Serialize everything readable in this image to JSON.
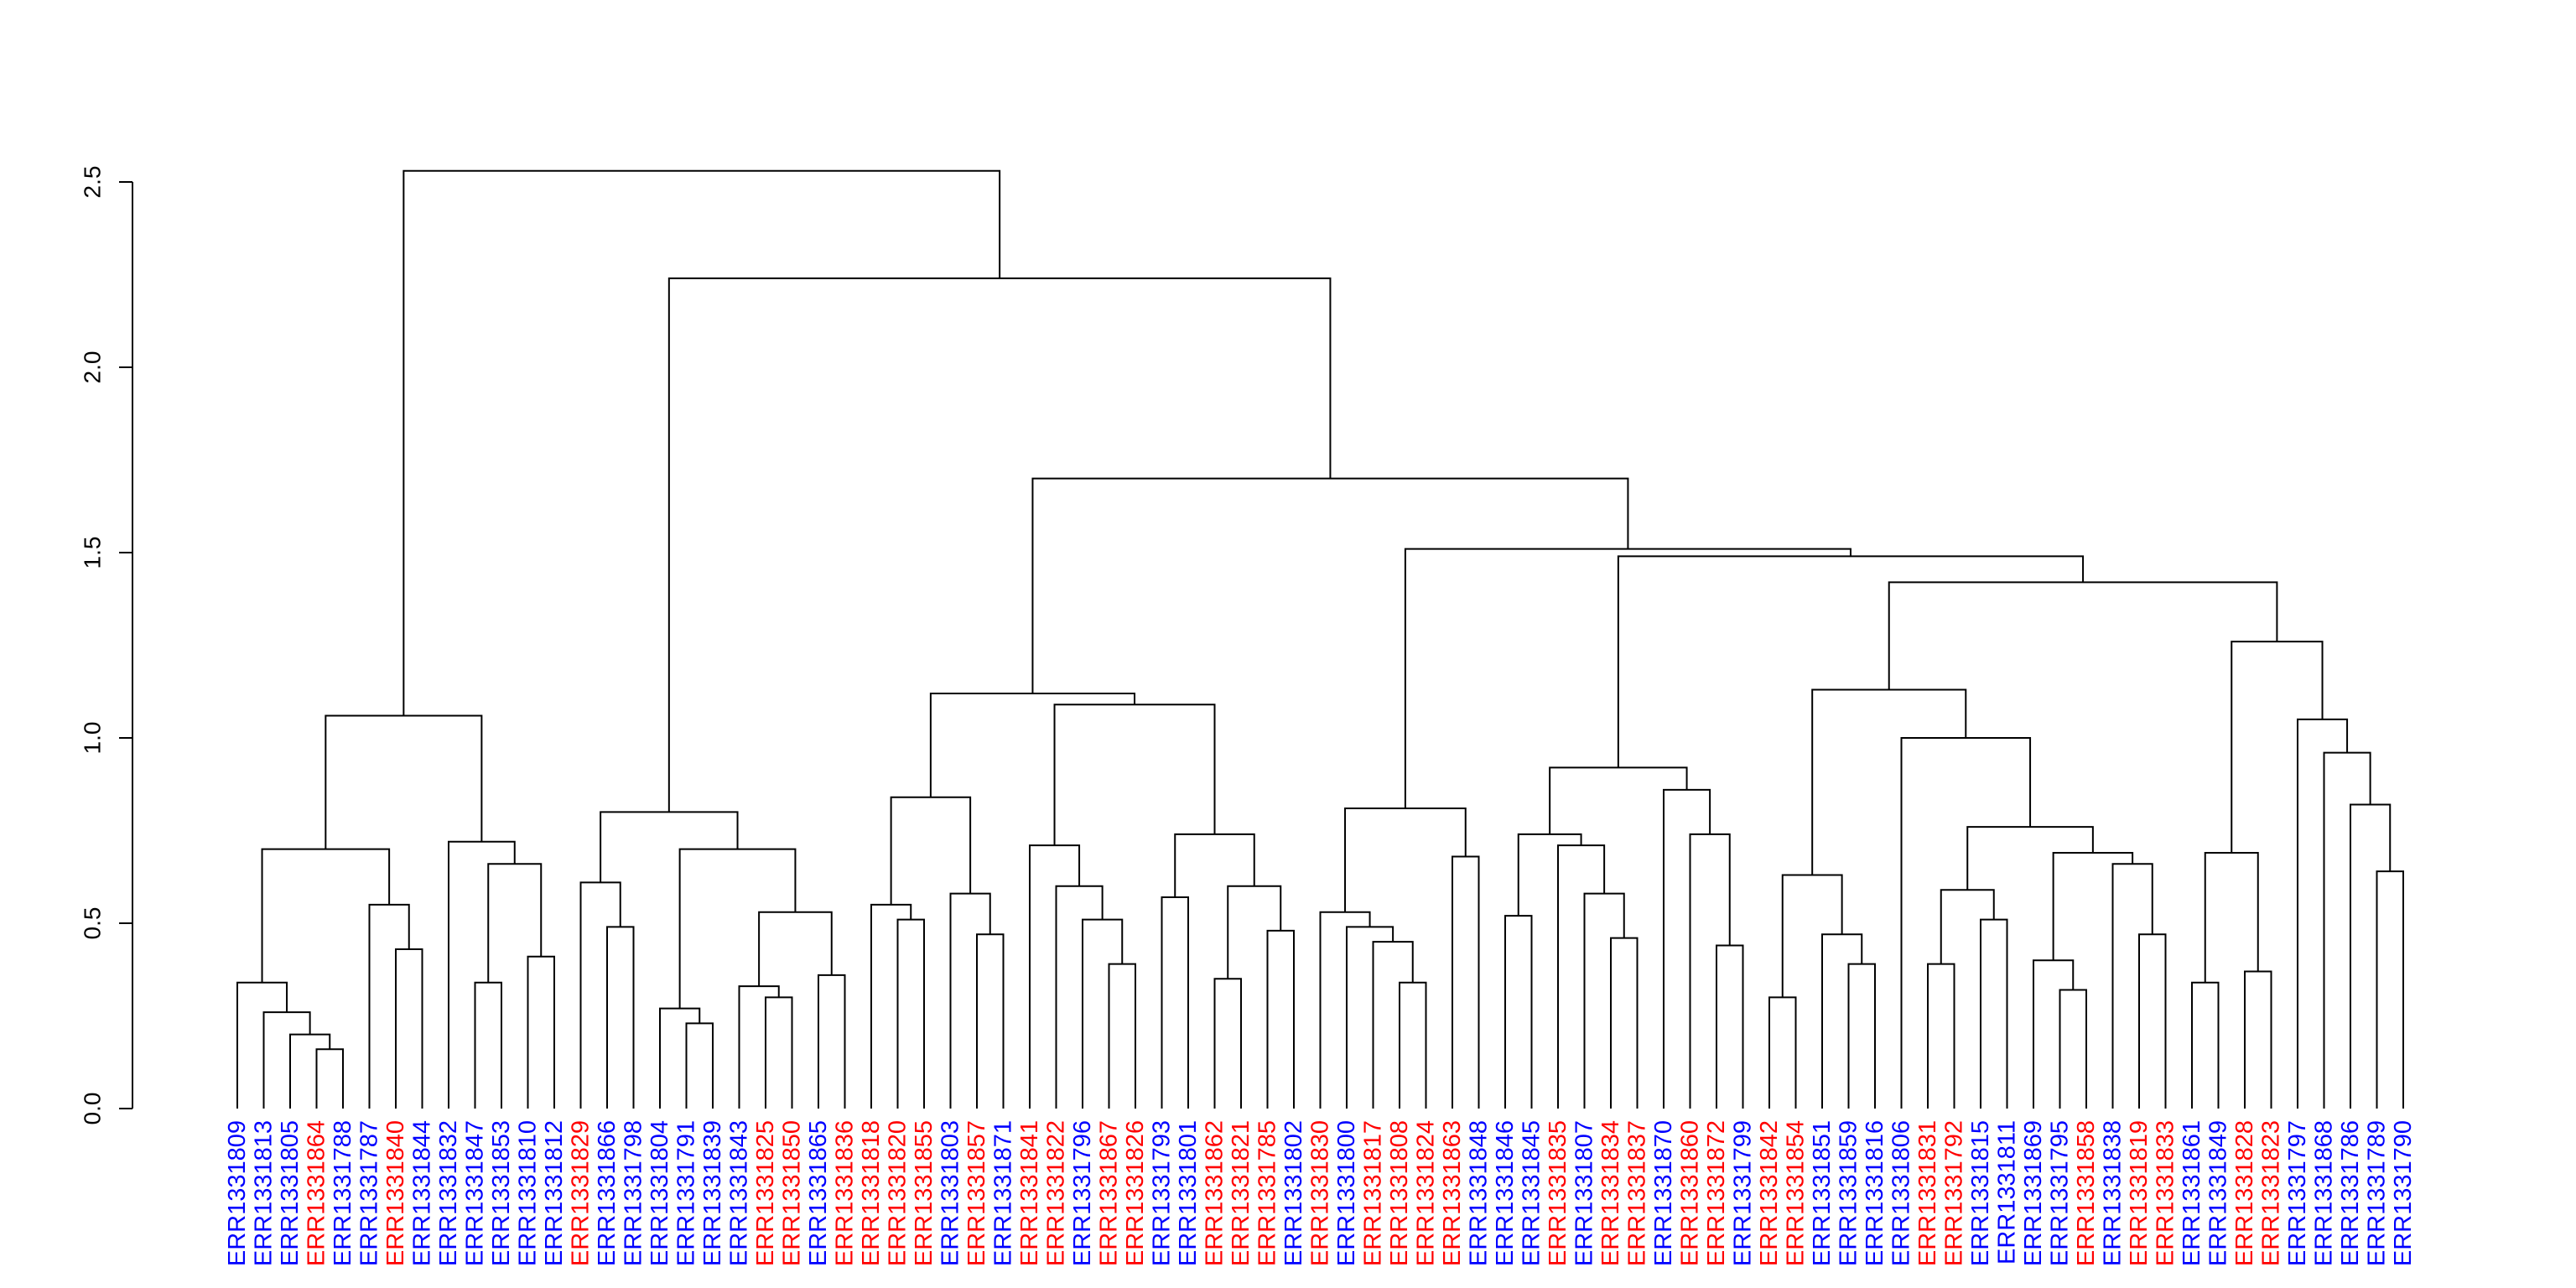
{
  "chart_data": {
    "type": "dendrogram",
    "title": "",
    "xlabel": "",
    "ylabel": "",
    "ylim": [
      0,
      2.5
    ],
    "y_ticks": [
      "0.0",
      "0.5",
      "1.0",
      "1.5",
      "2.0",
      "2.5"
    ],
    "grid": false,
    "group_colors": {
      "red": "#ff0000",
      "blue": "#0000ff"
    },
    "leaves": [
      {
        "label": "ERR1331809",
        "group": "blue"
      },
      {
        "label": "ERR1331813",
        "group": "blue"
      },
      {
        "label": "ERR1331805",
        "group": "blue"
      },
      {
        "label": "ERR1331864",
        "group": "red"
      },
      {
        "label": "ERR1331788",
        "group": "blue"
      },
      {
        "label": "ERR1331787",
        "group": "blue"
      },
      {
        "label": "ERR1331840",
        "group": "red"
      },
      {
        "label": "ERR1331844",
        "group": "blue"
      },
      {
        "label": "ERR1331832",
        "group": "blue"
      },
      {
        "label": "ERR1331847",
        "group": "blue"
      },
      {
        "label": "ERR1331853",
        "group": "blue"
      },
      {
        "label": "ERR1331810",
        "group": "blue"
      },
      {
        "label": "ERR1331812",
        "group": "blue"
      },
      {
        "label": "ERR1331829",
        "group": "red"
      },
      {
        "label": "ERR1331866",
        "group": "blue"
      },
      {
        "label": "ERR1331798",
        "group": "blue"
      },
      {
        "label": "ERR1331804",
        "group": "blue"
      },
      {
        "label": "ERR1331791",
        "group": "blue"
      },
      {
        "label": "ERR1331839",
        "group": "blue"
      },
      {
        "label": "ERR1331843",
        "group": "blue"
      },
      {
        "label": "ERR1331825",
        "group": "red"
      },
      {
        "label": "ERR1331850",
        "group": "red"
      },
      {
        "label": "ERR1331865",
        "group": "blue"
      },
      {
        "label": "ERR1331836",
        "group": "red"
      },
      {
        "label": "ERR1331818",
        "group": "red"
      },
      {
        "label": "ERR1331820",
        "group": "red"
      },
      {
        "label": "ERR1331855",
        "group": "red"
      },
      {
        "label": "ERR1331803",
        "group": "blue"
      },
      {
        "label": "ERR1331857",
        "group": "red"
      },
      {
        "label": "ERR1331871",
        "group": "blue"
      },
      {
        "label": "ERR1331841",
        "group": "red"
      },
      {
        "label": "ERR1331822",
        "group": "red"
      },
      {
        "label": "ERR1331796",
        "group": "blue"
      },
      {
        "label": "ERR1331867",
        "group": "red"
      },
      {
        "label": "ERR1331826",
        "group": "red"
      },
      {
        "label": "ERR1331793",
        "group": "blue"
      },
      {
        "label": "ERR1331801",
        "group": "blue"
      },
      {
        "label": "ERR1331862",
        "group": "red"
      },
      {
        "label": "ERR1331821",
        "group": "red"
      },
      {
        "label": "ERR1331785",
        "group": "red"
      },
      {
        "label": "ERR1331802",
        "group": "blue"
      },
      {
        "label": "ERR1331830",
        "group": "red"
      },
      {
        "label": "ERR1331800",
        "group": "blue"
      },
      {
        "label": "ERR1331817",
        "group": "red"
      },
      {
        "label": "ERR1331808",
        "group": "red"
      },
      {
        "label": "ERR1331824",
        "group": "red"
      },
      {
        "label": "ERR1331863",
        "group": "red"
      },
      {
        "label": "ERR1331848",
        "group": "blue"
      },
      {
        "label": "ERR1331846",
        "group": "blue"
      },
      {
        "label": "ERR1331845",
        "group": "blue"
      },
      {
        "label": "ERR1331835",
        "group": "red"
      },
      {
        "label": "ERR1331807",
        "group": "blue"
      },
      {
        "label": "ERR1331834",
        "group": "red"
      },
      {
        "label": "ERR1331837",
        "group": "red"
      },
      {
        "label": "ERR1331870",
        "group": "blue"
      },
      {
        "label": "ERR1331860",
        "group": "red"
      },
      {
        "label": "ERR1331872",
        "group": "red"
      },
      {
        "label": "ERR1331799",
        "group": "blue"
      },
      {
        "label": "ERR1331842",
        "group": "red"
      },
      {
        "label": "ERR1331854",
        "group": "red"
      },
      {
        "label": "ERR1331851",
        "group": "blue"
      },
      {
        "label": "ERR1331859",
        "group": "blue"
      },
      {
        "label": "ERR1331816",
        "group": "blue"
      },
      {
        "label": "ERR1331806",
        "group": "blue"
      },
      {
        "label": "ERR1331831",
        "group": "red"
      },
      {
        "label": "ERR1331792",
        "group": "red"
      },
      {
        "label": "ERR1331815",
        "group": "blue"
      },
      {
        "label": "ERR1331811",
        "group": "blue"
      },
      {
        "label": "ERR1331869",
        "group": "blue"
      },
      {
        "label": "ERR1331795",
        "group": "blue"
      },
      {
        "label": "ERR1331858",
        "group": "red"
      },
      {
        "label": "ERR1331838",
        "group": "blue"
      },
      {
        "label": "ERR1331819",
        "group": "red"
      },
      {
        "label": "ERR1331833",
        "group": "red"
      },
      {
        "label": "ERR1331861",
        "group": "blue"
      },
      {
        "label": "ERR1331849",
        "group": "blue"
      },
      {
        "label": "ERR1331828",
        "group": "red"
      },
      {
        "label": "ERR1331823",
        "group": "red"
      },
      {
        "label": "ERR1331797",
        "group": "blue"
      },
      {
        "label": "ERR1331868",
        "group": "blue"
      },
      {
        "label": "ERR1331786",
        "group": "blue"
      },
      {
        "label": "ERR1331789",
        "group": "blue"
      },
      {
        "label": "ERR1331790",
        "group": "blue"
      }
    ],
    "merges": [
      {
        "a": 3,
        "b": 4,
        "h": 0.16
      },
      {
        "a": 2,
        "b": "m0",
        "h": 0.2
      },
      {
        "a": 1,
        "b": "m1",
        "h": 0.26
      },
      {
        "a": 0,
        "b": "m2",
        "h": 0.34
      },
      {
        "a": 6,
        "b": 7,
        "h": 0.43
      },
      {
        "a": 5,
        "b": "m4",
        "h": 0.55
      },
      {
        "a": "m3",
        "b": "m5",
        "h": 0.7
      },
      {
        "a": 9,
        "b": 10,
        "h": 0.34
      },
      {
        "a": 11,
        "b": 12,
        "h": 0.41
      },
      {
        "a": "m7",
        "b": "m8",
        "h": 0.66
      },
      {
        "a": 8,
        "b": "m9",
        "h": 0.72
      },
      {
        "a": "m6",
        "b": "m10",
        "h": 1.06
      },
      {
        "a": 14,
        "b": 15,
        "h": 0.49
      },
      {
        "a": 13,
        "b": "m12",
        "h": 0.61
      },
      {
        "a": 17,
        "b": 18,
        "h": 0.23
      },
      {
        "a": 16,
        "b": "m14",
        "h": 0.27
      },
      {
        "a": 20,
        "b": 21,
        "h": 0.3
      },
      {
        "a": 19,
        "b": "m16",
        "h": 0.33
      },
      {
        "a": 22,
        "b": 23,
        "h": 0.36
      },
      {
        "a": "m17",
        "b": "m18",
        "h": 0.53
      },
      {
        "a": "m15",
        "b": "m19",
        "h": 0.7
      },
      {
        "a": "m13",
        "b": "m20",
        "h": 0.8
      },
      {
        "a": 25,
        "b": 26,
        "h": 0.51
      },
      {
        "a": 24,
        "b": "m22",
        "h": 0.55
      },
      {
        "a": 28,
        "b": 29,
        "h": 0.47
      },
      {
        "a": 27,
        "b": "m24",
        "h": 0.58
      },
      {
        "a": "m23",
        "b": "m25",
        "h": 0.84
      },
      {
        "a": 33,
        "b": 34,
        "h": 0.39
      },
      {
        "a": 32,
        "b": "m27",
        "h": 0.51
      },
      {
        "a": 31,
        "b": "m28",
        "h": 0.6
      },
      {
        "a": 30,
        "b": "m29",
        "h": 0.71
      },
      {
        "a": 35,
        "b": 36,
        "h": 0.57
      },
      {
        "a": 37,
        "b": 38,
        "h": 0.35
      },
      {
        "a": 39,
        "b": 40,
        "h": 0.48
      },
      {
        "a": "m32",
        "b": "m33",
        "h": 0.6
      },
      {
        "a": "m31",
        "b": "m34",
        "h": 0.74
      },
      {
        "a": "m30",
        "b": "m35",
        "h": 1.09
      },
      {
        "a": "m26",
        "b": "m36",
        "h": 1.12
      },
      {
        "a": 44,
        "b": 45,
        "h": 0.34
      },
      {
        "a": 43,
        "b": "m38",
        "h": 0.45
      },
      {
        "a": 42,
        "b": "m39",
        "h": 0.49
      },
      {
        "a": 41,
        "b": "m40",
        "h": 0.53
      },
      {
        "a": 46,
        "b": 47,
        "h": 0.68
      },
      {
        "a": "m41",
        "b": "m42",
        "h": 0.81
      },
      {
        "a": 52,
        "b": 53,
        "h": 0.46
      },
      {
        "a": 51,
        "b": "m44",
        "h": 0.58
      },
      {
        "a": 50,
        "b": "m45",
        "h": 0.71
      },
      {
        "a": 49,
        "b": 48,
        "h": 0.52
      },
      {
        "a": "m47",
        "b": "m46",
        "h": 0.74
      },
      {
        "a": 56,
        "b": 57,
        "h": 0.44
      },
      {
        "a": 55,
        "b": "m49",
        "h": 0.74
      },
      {
        "a": 54,
        "b": "m50",
        "h": 0.86
      },
      {
        "a": "m48",
        "b": "m51",
        "h": 0.92
      },
      {
        "a": 58,
        "b": 59,
        "h": 0.3
      },
      {
        "a": 61,
        "b": 62,
        "h": 0.39
      },
      {
        "a": 60,
        "b": "m54",
        "h": 0.47
      },
      {
        "a": "m53",
        "b": "m55",
        "h": 0.63
      },
      {
        "a": 64,
        "b": 65,
        "h": 0.39
      },
      {
        "a": 66,
        "b": 67,
        "h": 0.51
      },
      {
        "a": "m57",
        "b": "m58",
        "h": 0.59
      },
      {
        "a": 69,
        "b": 70,
        "h": 0.32
      },
      {
        "a": 68,
        "b": "m60",
        "h": 0.4
      },
      {
        "a": 72,
        "b": 73,
        "h": 0.47
      },
      {
        "a": 71,
        "b": "m62",
        "h": 0.66
      },
      {
        "a": "m61",
        "b": "m63",
        "h": 0.69
      },
      {
        "a": "m59",
        "b": "m64",
        "h": 0.76
      },
      {
        "a": 63,
        "b": "m65",
        "h": 1.0
      },
      {
        "a": "m56",
        "b": "m66",
        "h": 1.13
      },
      {
        "a": 74,
        "b": 75,
        "h": 0.34
      },
      {
        "a": 76,
        "b": 77,
        "h": 0.37
      },
      {
        "a": "m68",
        "b": "m69",
        "h": 0.69
      },
      {
        "a": 81,
        "b": 82,
        "h": 0.64
      },
      {
        "a": 80,
        "b": "m71",
        "h": 0.82
      },
      {
        "a": 79,
        "b": "m72",
        "h": 0.96
      },
      {
        "a": 78,
        "b": "m73",
        "h": 1.05
      },
      {
        "a": "m70",
        "b": "m74",
        "h": 1.26
      },
      {
        "a": "m67",
        "b": "m75",
        "h": 1.42
      },
      {
        "a": "m52",
        "b": "m76",
        "h": 1.49
      },
      {
        "a": "m43",
        "b": "m77",
        "h": 1.51
      },
      {
        "a": "m37",
        "b": "m78",
        "h": 1.7
      },
      {
        "a": "m21",
        "b": "m79",
        "h": 2.24
      },
      {
        "a": "m11",
        "b": "m80",
        "h": 2.53
      }
    ]
  }
}
